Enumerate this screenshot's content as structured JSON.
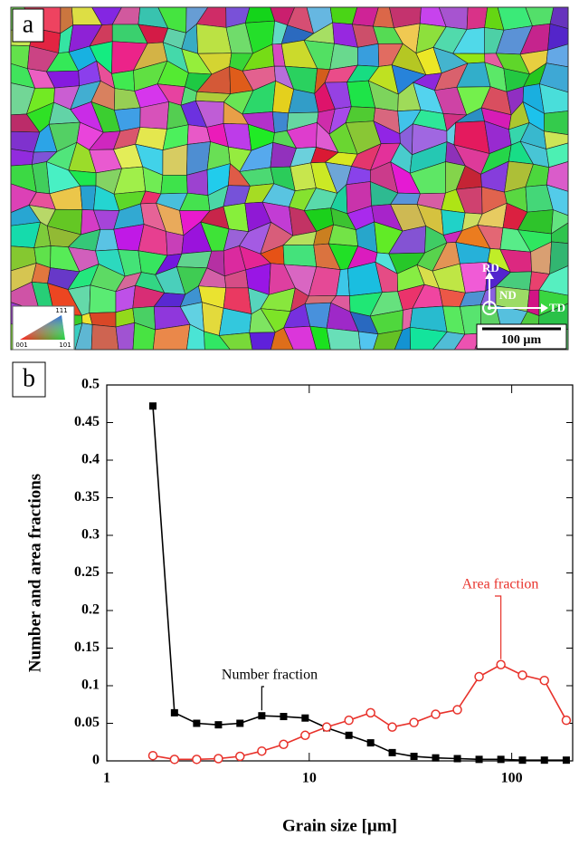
{
  "figure_a": {
    "label": "a",
    "directions": {
      "up": "RD",
      "normal": "ND",
      "right": "TD"
    },
    "scale_bar": "100 µm",
    "ipf_corners": [
      "111",
      "001",
      "101"
    ]
  },
  "chart_data": {
    "type": "line",
    "panel_label": "b",
    "x_label": "Grain size [µm]",
    "y_label": "Number and area fractions",
    "log_x": true,
    "xlim": [
      1,
      200
    ],
    "ylim": [
      0,
      0.5
    ],
    "xticks": [
      1,
      10,
      100
    ],
    "yticks": [
      0,
      0.05,
      0.1,
      0.15,
      0.2,
      0.25,
      0.3,
      0.35,
      0.4,
      0.45,
      0.5
    ],
    "x": [
      1.69,
      2.16,
      2.78,
      3.56,
      4.55,
      5.83,
      7.47,
      9.55,
      12.2,
      15.7,
      20.1,
      25.7,
      32.9,
      42.1,
      53.9,
      69,
      88.4,
      113,
      145,
      186
    ],
    "series": [
      {
        "name": "Number fraction",
        "color": "#000000",
        "marker": "square",
        "values": [
          0.472,
          0.064,
          0.05,
          0.048,
          0.05,
          0.06,
          0.059,
          0.057,
          0.044,
          0.034,
          0.024,
          0.011,
          0.006,
          0.004,
          0.003,
          0.002,
          0.002,
          0.001,
          0.001,
          0.001
        ]
      },
      {
        "name": "Area fraction",
        "color": "#e8322b",
        "marker": "open-circle",
        "values": [
          0.007,
          0.002,
          0.002,
          0.003,
          0.006,
          0.013,
          0.022,
          0.034,
          0.045,
          0.054,
          0.064,
          0.045,
          0.051,
          0.062,
          0.068,
          0.112,
          0.128,
          0.114,
          0.107,
          0.054
        ]
      }
    ]
  }
}
